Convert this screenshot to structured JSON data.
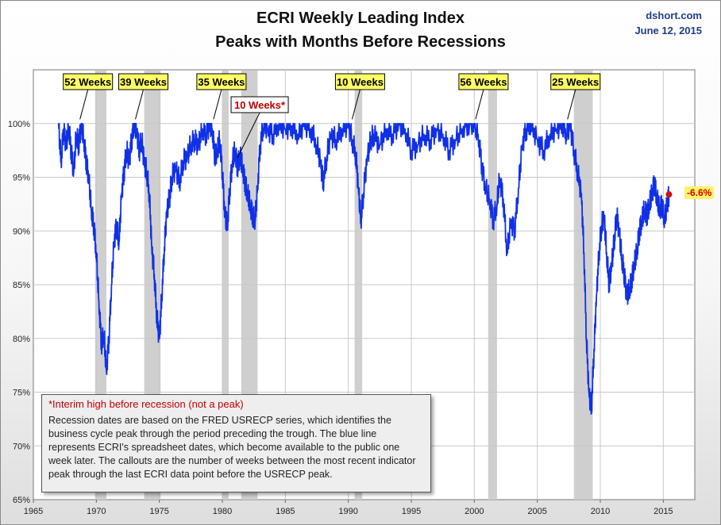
{
  "header": {
    "title_line1": "ECRI Weekly Leading Index",
    "title_line2": "Peaks with Months Before Recessions",
    "source": "dshort.com",
    "date": "June 12, 2015"
  },
  "note": {
    "headline": "*Interim high before recession (not a peak)",
    "body": "Recession dates are based on the FRED USRECP series, which identifies the business cycle peak through the period preceding the trough. The blue line represents ECRI's spreadsheet dates, which become available to the public one week later. The callouts are the number of weeks between the most recent indicator peak through the last ECRI data point before the USRECP peak."
  },
  "last_value_label": "-6.6%",
  "colors": {
    "line": "#1030e8",
    "recession": "#cfcfcf",
    "callout_fill": "#ffff66",
    "interim_text": "#c00000",
    "marker": "#d01010"
  },
  "chart_data": {
    "type": "line",
    "xlim": [
      1965,
      2017.5
    ],
    "ylim": [
      65,
      105
    ],
    "x_ticks": [
      1965,
      1970,
      1975,
      1980,
      1985,
      1990,
      1995,
      2000,
      2005,
      2010,
      2015
    ],
    "y_ticks": [
      65,
      70,
      75,
      80,
      85,
      90,
      95,
      100
    ],
    "y_tick_labels": [
      "65%",
      "70%",
      "75%",
      "80%",
      "85%",
      "90%",
      "95%",
      "100%"
    ],
    "grid": true,
    "recessions": [
      [
        1969.9,
        1970.8
      ],
      [
        1973.8,
        1975.1
      ],
      [
        1980.0,
        1980.5
      ],
      [
        1981.5,
        1982.8
      ],
      [
        1990.5,
        1991.1
      ],
      [
        2001.1,
        2001.8
      ],
      [
        2007.9,
        2009.4
      ]
    ],
    "callouts": [
      {
        "label": "52 Weeks",
        "x": 1968.7,
        "interim": false
      },
      {
        "label": "39 Weeks",
        "x": 1973.1,
        "interim": false
      },
      {
        "label": "35 Weeks",
        "x": 1979.3,
        "interim": false
      },
      {
        "label": "10 Weeks*",
        "x": 1981.2,
        "interim": true
      },
      {
        "label": "10 Weeks",
        "x": 1990.3,
        "interim": false
      },
      {
        "label": "56 Weeks",
        "x": 2000.1,
        "interim": false
      },
      {
        "label": "25 Weeks",
        "x": 2007.4,
        "interim": false
      }
    ],
    "series": [
      {
        "x": [
          1967.0,
          1967.2,
          1967.4,
          1967.6,
          1967.8,
          1968.0,
          1968.2,
          1968.4,
          1968.6,
          1968.8,
          1969.0,
          1969.2,
          1969.4,
          1969.6,
          1969.8,
          1970.0,
          1970.2,
          1970.4,
          1970.6,
          1970.8,
          1971.0,
          1971.2,
          1971.4,
          1971.6,
          1971.8,
          1972.0,
          1972.2,
          1972.4,
          1972.6,
          1972.8,
          1973.0,
          1973.2,
          1973.4,
          1973.6,
          1973.8,
          1974.0,
          1974.2,
          1974.4,
          1974.6,
          1974.8,
          1975.0,
          1975.2,
          1975.4,
          1975.6,
          1975.8,
          1976.0,
          1976.3,
          1976.6,
          1976.9,
          1977.2,
          1977.5,
          1977.8,
          1978.1,
          1978.4,
          1978.7,
          1979.0,
          1979.2,
          1979.4,
          1979.6,
          1979.8,
          1980.0,
          1980.2,
          1980.4,
          1980.6,
          1980.8,
          1981.0,
          1981.2,
          1981.4,
          1981.6,
          1981.8,
          1982.0,
          1982.2,
          1982.4,
          1982.6,
          1982.8,
          1983.0,
          1983.3,
          1983.6,
          1984.0,
          1984.5,
          1985.0,
          1985.5,
          1986.0,
          1986.5,
          1987.0,
          1987.5,
          1987.8,
          1988.0,
          1988.3,
          1988.6,
          1989.0,
          1989.5,
          1990.0,
          1990.3,
          1990.6,
          1990.8,
          1991.0,
          1991.2,
          1991.5,
          1991.8,
          1992.0,
          1992.5,
          1993.0,
          1993.5,
          1994.0,
          1994.5,
          1995.0,
          1995.5,
          1996.0,
          1996.5,
          1997.0,
          1997.5,
          1998.0,
          1998.5,
          1999.0,
          1999.5,
          2000.0,
          2000.3,
          2000.6,
          2000.9,
          2001.2,
          2001.5,
          2001.8,
          2002.0,
          2002.3,
          2002.6,
          2002.9,
          2003.2,
          2003.5,
          2003.8,
          2004.1,
          2004.5,
          2005.0,
          2005.5,
          2006.0,
          2006.5,
          2007.0,
          2007.3,
          2007.6,
          2007.9,
          2008.2,
          2008.5,
          2008.7,
          2008.9,
          2009.1,
          2009.3,
          2009.5,
          2009.7,
          2009.9,
          2010.1,
          2010.3,
          2010.5,
          2010.7,
          2010.9,
          2011.1,
          2011.3,
          2011.5,
          2011.7,
          2011.9,
          2012.1,
          2012.3,
          2012.5,
          2012.7,
          2012.9,
          2013.1,
          2013.3,
          2013.5,
          2013.7,
          2013.9,
          2014.1,
          2014.3,
          2014.5,
          2014.7,
          2014.9,
          2015.1,
          2015.3,
          2015.45
        ],
        "y": [
          100.0,
          96.5,
          99.5,
          98.0,
          99.8,
          97.5,
          95.5,
          99.0,
          98.0,
          100.0,
          98.5,
          96.5,
          95.0,
          92.0,
          90.5,
          88.0,
          83.5,
          79.5,
          80.5,
          77.0,
          80.0,
          85.0,
          89.0,
          90.5,
          89.0,
          93.5,
          95.5,
          97.5,
          96.5,
          98.5,
          100.0,
          99.5,
          97.5,
          98.5,
          96.5,
          95.5,
          93.5,
          88.5,
          86.0,
          82.0,
          80.0,
          84.0,
          88.5,
          92.0,
          93.0,
          95.0,
          96.0,
          94.5,
          96.5,
          97.0,
          98.0,
          98.5,
          98.0,
          99.5,
          99.0,
          100.0,
          99.5,
          97.0,
          97.5,
          98.5,
          95.5,
          91.5,
          90.5,
          94.0,
          96.5,
          97.5,
          96.0,
          97.0,
          96.0,
          94.5,
          93.5,
          92.5,
          91.5,
          91.0,
          94.0,
          98.0,
          100.0,
          99.5,
          99.0,
          100.0,
          99.5,
          99.8,
          99.0,
          100.0,
          99.5,
          98.0,
          96.5,
          94.5,
          97.0,
          99.0,
          98.5,
          99.5,
          100.0,
          98.5,
          97.0,
          94.0,
          91.0,
          93.5,
          97.0,
          98.5,
          99.0,
          98.0,
          99.5,
          99.0,
          100.0,
          99.5,
          97.5,
          98.0,
          99.0,
          98.5,
          99.5,
          99.0,
          97.5,
          98.5,
          99.5,
          100.0,
          100.0,
          99.0,
          96.0,
          94.0,
          93.0,
          91.0,
          92.5,
          95.0,
          93.0,
          88.0,
          91.0,
          90.0,
          94.0,
          98.0,
          99.5,
          100.0,
          98.5,
          97.5,
          99.0,
          99.5,
          100.0,
          99.0,
          100.0,
          97.5,
          95.5,
          93.5,
          88.0,
          80.0,
          75.0,
          73.5,
          79.0,
          84.0,
          88.0,
          90.5,
          91.5,
          88.0,
          85.0,
          87.0,
          89.0,
          91.5,
          90.0,
          87.5,
          86.0,
          84.0,
          84.5,
          85.5,
          87.0,
          88.0,
          90.0,
          91.0,
          92.0,
          91.5,
          92.5,
          93.5,
          94.5,
          93.0,
          92.0,
          92.5,
          91.0,
          92.5,
          93.4
        ]
      }
    ],
    "last_point": {
      "x": 2015.45,
      "y": 93.4,
      "label": "-6.6%"
    }
  }
}
